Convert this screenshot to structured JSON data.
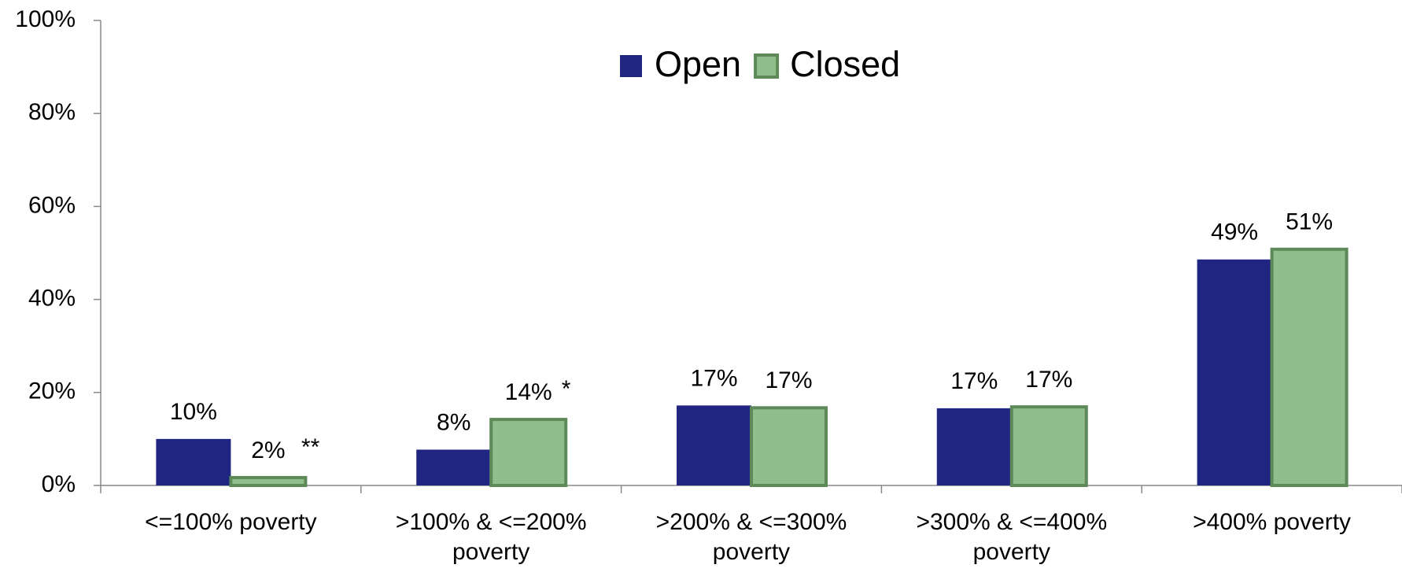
{
  "chart_data": {
    "type": "bar",
    "categories": [
      "<=100% poverty",
      ">100% & <=200% poverty",
      ">200% & <=300% poverty",
      ">300% & <=400% poverty",
      ">400% poverty"
    ],
    "series": [
      {
        "name": "Open",
        "color": "#1f2580",
        "values": [
          10,
          7.7,
          17.2,
          16.6,
          48.6
        ],
        "value_labels": [
          "10%",
          "8%",
          "17%",
          "17%",
          "49%"
        ]
      },
      {
        "name": "Closed",
        "color": "#8fbf8a",
        "edge_color": "#5e8a5a",
        "values": [
          1.7,
          14.2,
          16.7,
          16.9,
          50.8
        ],
        "value_labels": [
          "2%",
          "14%",
          "17%",
          "17%",
          "51%"
        ]
      }
    ],
    "annotations": [
      {
        "text": "**",
        "series": 1,
        "category": 0
      },
      {
        "text": "*",
        "series": 1,
        "category": 1
      }
    ],
    "ylim": [
      0,
      100
    ],
    "yticks": [
      {
        "value": 0,
        "label": "0%"
      },
      {
        "value": 20,
        "label": "20%"
      },
      {
        "value": 40,
        "label": "40%"
      },
      {
        "value": 60,
        "label": "60%"
      },
      {
        "value": 80,
        "label": "80%"
      },
      {
        "value": 100,
        "label": "100%"
      }
    ],
    "legend": "top"
  }
}
